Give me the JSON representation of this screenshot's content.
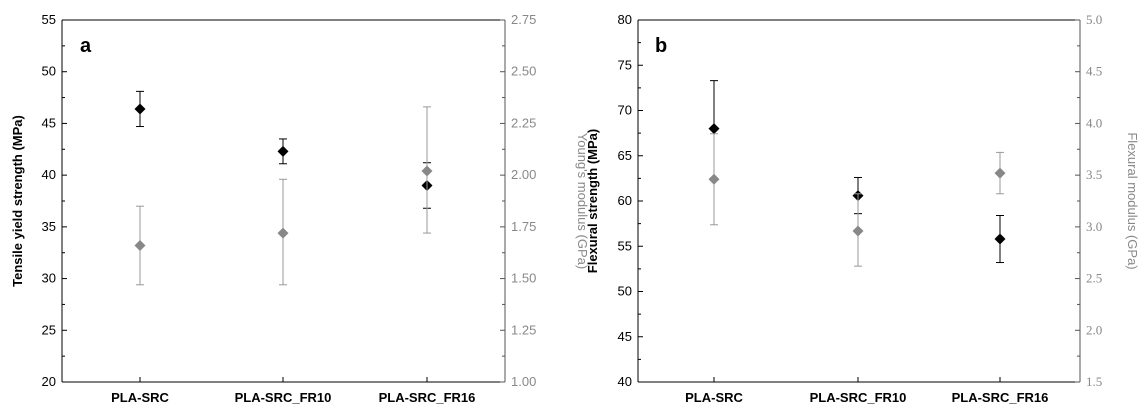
{
  "colors": {
    "primary": "#000000",
    "secondary": "#888888"
  },
  "chart_data": [
    {
      "type": "scatter",
      "panel_label": "a",
      "categories": [
        "PLA-SRC",
        "PLA-SRC_FR10",
        "PLA-SRC_FR16"
      ],
      "ylabel": "Tensile yield strength (MPa)",
      "ylim": [
        20,
        55
      ],
      "yticks": [
        "20",
        "25",
        "30",
        "35",
        "40",
        "45",
        "50",
        "55"
      ],
      "y2label": "Young's modulus (GPa)",
      "y2lim": [
        1.0,
        2.75
      ],
      "y2ticks": [
        "1.00",
        "1.25",
        "1.50",
        "1.75",
        "2.00",
        "2.25",
        "2.50",
        "2.75"
      ],
      "y2font": "sans",
      "series": [
        {
          "axis": "left",
          "color": "#000000",
          "values": [
            46.4,
            42.3,
            39.0
          ],
          "err_low": [
            44.7,
            41.1,
            36.8
          ],
          "err_high": [
            48.1,
            43.5,
            41.2
          ]
        },
        {
          "axis": "right",
          "color": "#888888",
          "values": [
            1.66,
            1.72,
            2.02
          ],
          "err_low": [
            1.47,
            1.47,
            1.72
          ],
          "err_high": [
            1.85,
            1.98,
            2.33
          ]
        }
      ]
    },
    {
      "type": "scatter",
      "panel_label": "b",
      "categories": [
        "PLA-SRC",
        "PLA-SRC_FR10",
        "PLA-SRC_FR16"
      ],
      "ylabel": "Flexural strength (MPa)",
      "ylim": [
        40,
        80
      ],
      "yticks": [
        "40",
        "45",
        "50",
        "55",
        "60",
        "65",
        "70",
        "75",
        "80"
      ],
      "y2label": "Flexural modulus (GPa)",
      "y2lim": [
        1.5,
        5.0
      ],
      "y2ticks": [
        "1.5",
        "2.0",
        "2.5",
        "3.0",
        "3.5",
        "4.0",
        "4.5",
        "5.0"
      ],
      "y2font": "serif",
      "series": [
        {
          "axis": "left",
          "color": "#000000",
          "values": [
            68.0,
            60.6,
            55.8
          ],
          "err_low": [
            62.5,
            58.6,
            53.2
          ],
          "err_high": [
            73.3,
            62.6,
            58.4
          ]
        },
        {
          "axis": "right",
          "color": "#888888",
          "values": [
            3.46,
            2.96,
            3.52
          ],
          "err_low": [
            3.02,
            2.62,
            3.32
          ],
          "err_high": [
            3.9,
            3.32,
            3.72
          ]
        }
      ]
    }
  ]
}
